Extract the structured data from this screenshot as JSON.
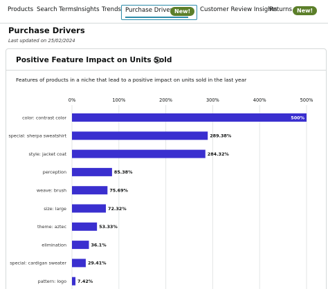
{
  "tabs": {
    "products": "Products",
    "search_terms": "Search Terms",
    "insights": "Insights",
    "trends": "Trends",
    "purchase_drivers": "Purchase Drivers",
    "purchase_drivers_badge": "New!",
    "customer_review_insights": "Customer Review Insights",
    "returns": "Returns",
    "returns_badge": "New!"
  },
  "header": {
    "title": "Purchase Drivers",
    "last_updated": "Last updated on 25/02/2024"
  },
  "card": {
    "title": "Positive Feature Impact on Units Sold",
    "subtitle": "Features of products in a niche that lead to a positive impact on units sold in the last year"
  },
  "colors": {
    "bar": "#3a2fcf",
    "tab_highlight": "#2b8aa8",
    "badge": "#5c7f2a"
  },
  "chart_data": {
    "type": "bar",
    "orientation": "horizontal",
    "categories": [
      "color: contrast color",
      "special: sherpa sweatshirt",
      "style: jacket coat",
      "perception",
      "weave: brush",
      "size: large",
      "theme: aztec",
      "elimination",
      "special: cardigan sweater",
      "pattern: logo"
    ],
    "values": [
      500,
      289.38,
      284.32,
      85.38,
      75.69,
      72.32,
      53.33,
      36.1,
      29.41,
      7.42
    ],
    "value_labels": [
      "500%",
      "289.38%",
      "284.32%",
      "85.38%",
      "75.69%",
      "72.32%",
      "53.33%",
      "36.1%",
      "29.41%",
      "7.42%"
    ],
    "x_ticks": [
      0,
      100,
      200,
      300,
      400,
      500
    ],
    "x_tick_labels": [
      "0%",
      "100%",
      "200%",
      "300%",
      "400%",
      "500%"
    ],
    "xlim": [
      0,
      500
    ],
    "grid": true,
    "tick_position": "top"
  }
}
